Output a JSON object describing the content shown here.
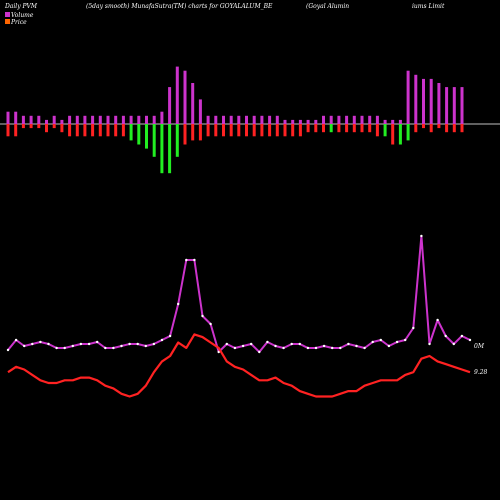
{
  "header": {
    "left": "Daily PVM",
    "middle": "(5day smooth) MunafaSutra(TM) charts for GOYALALUM_BE",
    "right_a": "(Goyal Alumin",
    "right_b": "iums Limit"
  },
  "legend": [
    {
      "label": "Volume",
      "color": "#cc33cc"
    },
    {
      "label": "Price",
      "color": "#ff6600"
    }
  ],
  "side_labels": {
    "volume": "0M",
    "price": "9.28"
  },
  "colors": {
    "background": "#000000",
    "volume_line": "#cc33cc",
    "price_line": "#ff2222",
    "bar_up": "#cc33cc",
    "bar_down_red": "#ff2222",
    "bar_down_green": "#22ee22",
    "baseline": "#ffffff"
  },
  "chart_data": {
    "type": "line",
    "series": [
      {
        "name": "Volume",
        "values": [
          15,
          20,
          17,
          18,
          19,
          18,
          16,
          16,
          17,
          18,
          18,
          19,
          16,
          16,
          17,
          18,
          18,
          17,
          18,
          20,
          22,
          38,
          60,
          60,
          32,
          28,
          14,
          18,
          16,
          17,
          18,
          14,
          19,
          17,
          16,
          18,
          18,
          16,
          16,
          17,
          16,
          16,
          18,
          17,
          16,
          19,
          20,
          17,
          19,
          20,
          26,
          72,
          18,
          30,
          22,
          18,
          22,
          20
        ]
      },
      {
        "name": "Price",
        "values": [
          14,
          16,
          15,
          13,
          11,
          10,
          10,
          11,
          11,
          12,
          12,
          11,
          9,
          8,
          6,
          5,
          6,
          9,
          14,
          18,
          20,
          25,
          23,
          28,
          27,
          25,
          23,
          18,
          16,
          15,
          13,
          11,
          11,
          12,
          10,
          9,
          7,
          6,
          5,
          5,
          5,
          6,
          7,
          7,
          9,
          10,
          11,
          11,
          11,
          13,
          14,
          19,
          20,
          18,
          17,
          16,
          15,
          14
        ]
      }
    ],
    "bars": {
      "up": [
        3,
        3,
        2,
        2,
        2,
        1,
        2,
        1,
        2,
        2,
        2,
        2,
        2,
        2,
        2,
        2,
        2,
        2,
        2,
        2,
        3,
        9,
        14,
        13,
        10,
        6,
        2,
        2,
        2,
        2,
        2,
        2,
        2,
        2,
        2,
        2,
        1,
        1,
        1,
        1,
        1,
        2,
        2,
        2,
        2,
        2,
        2,
        2,
        2,
        1,
        1,
        1,
        13,
        12,
        11,
        11,
        10,
        9,
        9,
        9
      ],
      "down": [
        3,
        3,
        1,
        1,
        1,
        2,
        1,
        2,
        3,
        3,
        3,
        3,
        3,
        3,
        3,
        3,
        4,
        5,
        6,
        8,
        12,
        12,
        8,
        5,
        4,
        4,
        3,
        3,
        3,
        3,
        3,
        3,
        3,
        3,
        3,
        3,
        3,
        3,
        3,
        2,
        2,
        2,
        2,
        2,
        2,
        2,
        2,
        2,
        3,
        3,
        5,
        5,
        4,
        2,
        1,
        2,
        1,
        2,
        2,
        2
      ],
      "down_colors": [
        "red",
        "red",
        "red",
        "red",
        "red",
        "red",
        "red",
        "red",
        "red",
        "red",
        "red",
        "red",
        "red",
        "red",
        "red",
        "red",
        "green",
        "green",
        "green",
        "green",
        "green",
        "green",
        "green",
        "red",
        "red",
        "red",
        "red",
        "red",
        "red",
        "red",
        "red",
        "red",
        "red",
        "red",
        "red",
        "red",
        "red",
        "red",
        "red",
        "red",
        "red",
        "red",
        "green",
        "red",
        "red",
        "red",
        "red",
        "red",
        "red",
        "green",
        "red",
        "green",
        "green",
        "red",
        "red",
        "red",
        "red",
        "red",
        "red",
        "red"
      ]
    }
  }
}
